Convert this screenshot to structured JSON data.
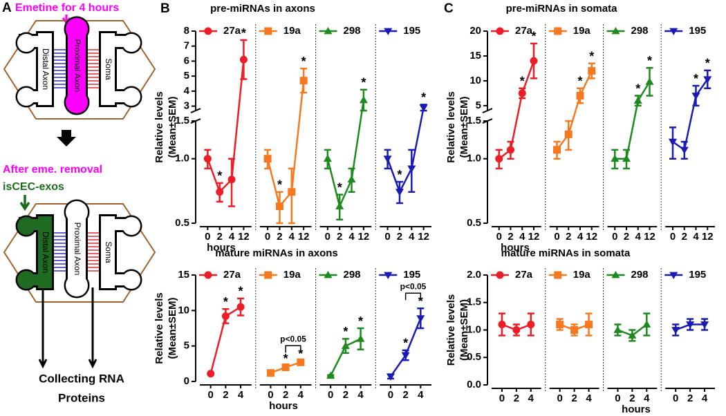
{
  "panel_labels": [
    "A",
    "B",
    "C"
  ],
  "diagram": {
    "treatment": "Emetine for 4 hours",
    "top_compartments": [
      "Distal Axon",
      "Proximal Axon",
      "Soma"
    ],
    "after": "After eme. removal",
    "exosomes": "isCEC-exos",
    "bottom_compartments": [
      "Distal Axon",
      "Proximal Axon",
      "Soma"
    ],
    "output": [
      "Collecting RNA",
      "Proteins"
    ]
  },
  "chart_data": [
    {
      "type": "line",
      "title": "pre-miRNAs in axons",
      "xlabel": "hours",
      "ylabel": [
        "Relative levels",
        "(Mean±SEM)"
      ],
      "categories": [
        "0",
        "2",
        "4",
        "12"
      ],
      "yaxis_segments": [
        {
          "ylim": [
            0.5,
            1.5
          ],
          "yticks": [
            0.5,
            {
              "value": 1,
              "label": "1.0"
            },
            1.5
          ],
          "log_scale": true
        },
        {
          "ylim": [
            2.7,
            8
          ],
          "yticks": [
            3,
            4,
            5,
            6,
            7,
            8
          ]
        }
      ],
      "series": [
        {
          "name": "27a",
          "color": "#ee1c25",
          "marker": "circle",
          "values": [
            1.0,
            0.7,
            0.8,
            6.1
          ],
          "errors": [
            0.1,
            0.07,
            0.2,
            1.3
          ],
          "significance": [
            null,
            "*",
            null,
            "*"
          ]
        },
        {
          "name": "19a",
          "color": "#f7791f",
          "marker": "square",
          "values": [
            1.0,
            0.6,
            0.7,
            4.7
          ],
          "errors": [
            0.1,
            0.1,
            0.2,
            0.8
          ],
          "significance": [
            null,
            "*",
            null,
            "*"
          ]
        },
        {
          "name": "298",
          "color": "#1d8a1d",
          "marker": "triangle",
          "values": [
            1.0,
            0.6,
            0.8,
            3.4
          ],
          "errors": [
            0.1,
            0.08,
            0.1,
            0.7
          ],
          "significance": [
            null,
            "*",
            null,
            "*"
          ]
        },
        {
          "name": "195",
          "color": "#1a1ab5",
          "marker": "triangle-down",
          "values": [
            1.0,
            0.7,
            0.9,
            2.9
          ],
          "errors": [
            0.1,
            0.08,
            0.2,
            0.2
          ],
          "significance": [
            null,
            "*",
            null,
            "*"
          ]
        }
      ]
    },
    {
      "type": "line",
      "title": "pre-miRNAs in somata",
      "xlabel": "hours",
      "ylabel": [
        "Relative levels",
        "(Mean±SEM)"
      ],
      "categories": [
        "0",
        "2",
        "4",
        "12"
      ],
      "yaxis_segments": [
        {
          "ylim": [
            0.5,
            1.5
          ],
          "yticks": [
            0.5,
            {
              "value": 1,
              "label": "1.0"
            },
            1.5
          ],
          "log_scale": true
        },
        {
          "ylim": [
            4,
            20
          ],
          "yticks": [
            5,
            10,
            15,
            20
          ]
        }
      ],
      "series": [
        {
          "name": "27a",
          "color": "#ee1c25",
          "marker": "circle",
          "values": [
            1.0,
            1.1,
            7.5,
            14
          ],
          "errors": [
            0.1,
            0.1,
            1.0,
            3.5
          ],
          "significance": [
            null,
            null,
            "*",
            "*"
          ]
        },
        {
          "name": "19a",
          "color": "#f7791f",
          "marker": "square",
          "values": [
            1.1,
            1.3,
            7,
            12
          ],
          "errors": [
            0.1,
            0.2,
            1.5,
            1.5
          ],
          "significance": [
            null,
            null,
            "*",
            "*"
          ]
        },
        {
          "name": "298",
          "color": "#1d8a1d",
          "marker": "triangle",
          "values": [
            1.0,
            1.0,
            6,
            9.8
          ],
          "errors": [
            0.1,
            0.1,
            1.0,
            2.8
          ],
          "significance": [
            null,
            null,
            "*",
            "*"
          ]
        },
        {
          "name": "195",
          "color": "#1a1ab5",
          "marker": "triangle-down",
          "values": [
            1.2,
            1.1,
            7,
            10.3
          ],
          "errors": [
            0.2,
            0.1,
            2,
            1.8
          ],
          "significance": [
            null,
            null,
            "*",
            "*"
          ]
        }
      ]
    },
    {
      "type": "line",
      "title": "mature miRNAs in axons",
      "xlabel": "hours",
      "ylabel": [
        "Relative levels",
        "(Mean±SEM)"
      ],
      "categories": [
        "0",
        "2",
        "4"
      ],
      "ylim": [
        0,
        15
      ],
      "yticks": [
        0,
        5,
        10,
        15
      ],
      "series": [
        {
          "name": "27a",
          "color": "#ee1c25",
          "marker": "circle",
          "values": [
            1.1,
            9.2,
            10.5
          ],
          "errors": [
            0.1,
            1,
            1.2
          ],
          "significance": [
            null,
            "*",
            "*"
          ]
        },
        {
          "name": "19a",
          "color": "#f7791f",
          "marker": "square",
          "values": [
            1.2,
            2.0,
            2.7
          ],
          "errors": [
            0.1,
            0.2,
            0.2
          ],
          "significance": [
            null,
            "*",
            "*"
          ],
          "bracket": "p<0.05"
        },
        {
          "name": "298",
          "color": "#1d8a1d",
          "marker": "triangle",
          "values": [
            0.8,
            5.0,
            6.0
          ],
          "errors": [
            0.1,
            1,
            1.5
          ],
          "significance": [
            null,
            "*",
            "*"
          ]
        },
        {
          "name": "195",
          "color": "#1a1ab5",
          "marker": "triangle-down",
          "values": [
            0.7,
            3.7,
            8.9
          ],
          "errors": [
            0.3,
            0.7,
            1.4
          ],
          "significance": [
            null,
            "*",
            "*"
          ],
          "bracket": "p<0.05"
        }
      ]
    },
    {
      "type": "line",
      "title": "mature miRNAs in somata",
      "xlabel": "hours",
      "ylabel": [
        "Relative levels",
        "(Mean±SEM)"
      ],
      "categories": [
        "0",
        "2",
        "4"
      ],
      "ylim": [
        0,
        2
      ],
      "yticks": [
        {
          "value": 0,
          "label": "0.0"
        },
        0.5,
        {
          "value": 1,
          "label": "1.0"
        },
        1.5,
        {
          "value": 2,
          "label": "2.0"
        }
      ],
      "series": [
        {
          "name": "27a",
          "color": "#ee1c25",
          "marker": "circle",
          "values": [
            1.1,
            1.0,
            1.1
          ],
          "errors": [
            0.2,
            0.1,
            0.2
          ]
        },
        {
          "name": "19a",
          "color": "#f7791f",
          "marker": "square",
          "values": [
            1.1,
            1.0,
            1.1
          ],
          "errors": [
            0.1,
            0.1,
            0.2
          ]
        },
        {
          "name": "298",
          "color": "#1d8a1d",
          "marker": "triangle",
          "values": [
            1.0,
            0.9,
            1.1
          ],
          "errors": [
            0.1,
            0.1,
            0.2
          ]
        },
        {
          "name": "195",
          "color": "#1a1ab5",
          "marker": "triangle-down",
          "values": [
            1.0,
            1.1,
            1.1
          ],
          "errors": [
            0.1,
            0.1,
            0.1
          ]
        }
      ]
    }
  ]
}
